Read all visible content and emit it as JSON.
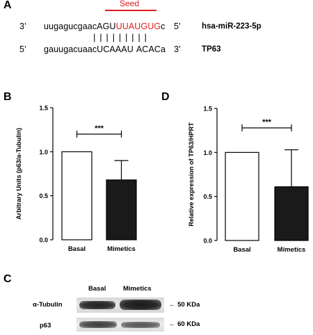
{
  "panel_a": {
    "letter": "A",
    "seed_label": "Seed",
    "mirna": {
      "end_left": "3’",
      "seq_lower": "uugagucgaac",
      "seq_upper": "AGU",
      "seq_seed": "UUAUGUG",
      "seq_tail": "c",
      "end_right": "5’",
      "name": "hsa-miR-223-5p"
    },
    "pairing_bars": "| | | | | | | | |",
    "target": {
      "end_left": "5’",
      "seq_lower": "gauugacuaac",
      "seq_upper1": "UCAAAU",
      "seq_upper2": "ACAC",
      "seq_tail": "a",
      "end_right": "3’",
      "name": "TP63"
    },
    "colors": {
      "seed": "#e11b1b"
    }
  },
  "panel_b": {
    "letter": "B",
    "significance": "***",
    "chart_data": {
      "type": "bar",
      "categories": [
        "Basal",
        "Mimetics"
      ],
      "values": [
        1.0,
        0.68
      ],
      "error_up": [
        0,
        0.22
      ],
      "ylabel": "Arbitrary Units (p63/a-Tubulin)",
      "ylim": [
        0,
        1.5
      ],
      "yticks": [
        "0.0",
        "0.5",
        "1.0",
        "1.5"
      ],
      "bar_fills": [
        "#ffffff",
        "#1a1a1a"
      ]
    }
  },
  "panel_d": {
    "letter": "D",
    "significance": "***",
    "chart_data": {
      "type": "bar",
      "categories": [
        "Basal",
        "Mimetics"
      ],
      "values": [
        1.0,
        0.61
      ],
      "error_up": [
        0,
        0.42
      ],
      "ylabel": "Relative expression of TP63/HPRT",
      "ylim": [
        0,
        1.5
      ],
      "yticks": [
        "0.0",
        "0.5",
        "1.0",
        "1.5"
      ],
      "bar_fills": [
        "#ffffff",
        "#1a1a1a"
      ]
    }
  },
  "panel_c": {
    "letter": "C",
    "lanes": [
      "Basal",
      "Mimetics"
    ],
    "rows": [
      {
        "label": "α-Tubulin",
        "size": "← 50 KDa"
      },
      {
        "label": "p63",
        "size": "← 60 KDa"
      }
    ]
  }
}
